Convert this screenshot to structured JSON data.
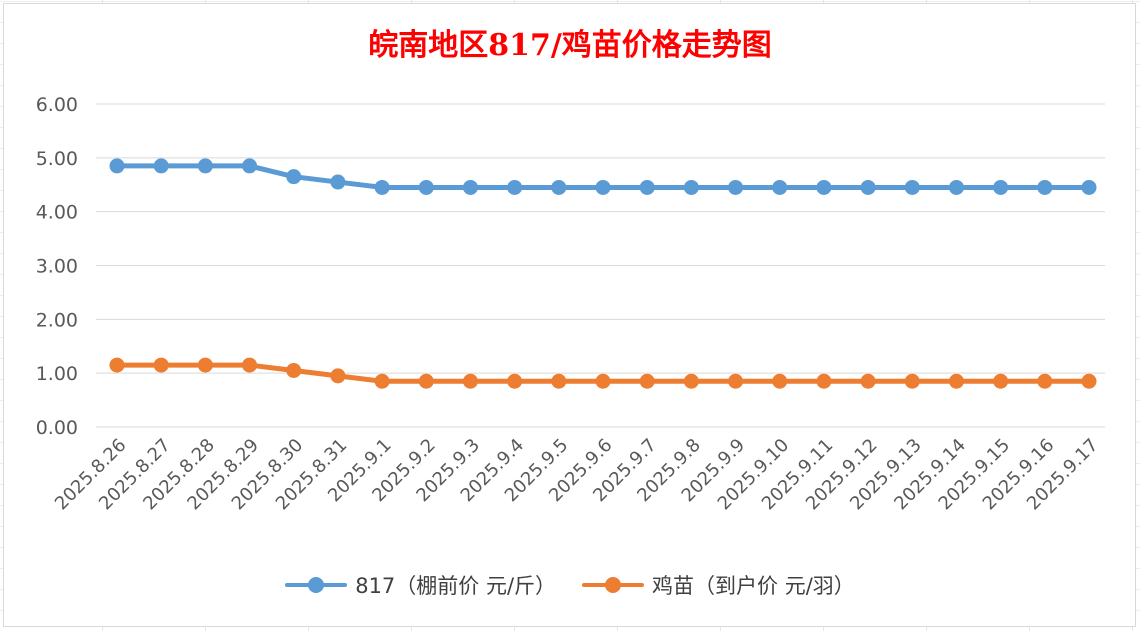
{
  "chart_data": {
    "type": "line",
    "title": "皖南地区817/鸡苗价格走势图",
    "categories": [
      "2025.8.26",
      "2025.8.27",
      "2025.8.28",
      "2025.8.29",
      "2025.8.30",
      "2025.8.31",
      "2025.9.1",
      "2025.9.2",
      "2025.9.3",
      "2025.9.4",
      "2025.9.5",
      "2025.9.6",
      "2025.9.7",
      "2025.9.8",
      "2025.9.9",
      "2025.9.10",
      "2025.9.11",
      "2025.9.12",
      "2025.9.13",
      "2025.9.14",
      "2025.9.15",
      "2025.9.16",
      "2025.9.17"
    ],
    "y_ticks": [
      "0.00",
      "1.00",
      "2.00",
      "3.00",
      "4.00",
      "5.00",
      "6.00"
    ],
    "ylim": [
      0,
      6
    ],
    "grid": true,
    "legend_position": "bottom",
    "series": [
      {
        "name": "817（棚前价 元/斤）",
        "color": "#5b9bd5",
        "values": [
          4.85,
          4.85,
          4.85,
          4.85,
          4.65,
          4.55,
          4.45,
          4.45,
          4.45,
          4.45,
          4.45,
          4.45,
          4.45,
          4.45,
          4.45,
          4.45,
          4.45,
          4.45,
          4.45,
          4.45,
          4.45,
          4.45,
          4.45
        ]
      },
      {
        "name": "鸡苗（到户价 元/羽）",
        "color": "#ed7d31",
        "values": [
          1.15,
          1.15,
          1.15,
          1.15,
          1.05,
          0.95,
          0.85,
          0.85,
          0.85,
          0.85,
          0.85,
          0.85,
          0.85,
          0.85,
          0.85,
          0.85,
          0.85,
          0.85,
          0.85,
          0.85,
          0.85,
          0.85,
          0.85
        ]
      }
    ]
  }
}
